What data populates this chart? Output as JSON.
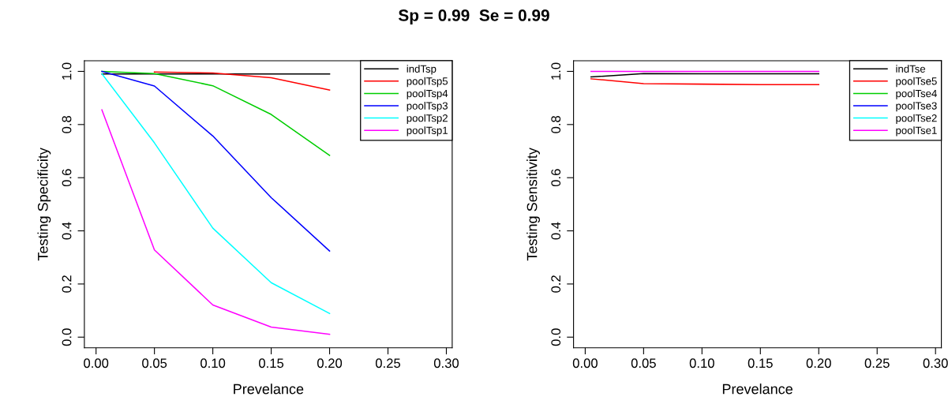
{
  "chart_data": [
    {
      "type": "line",
      "title": "Sp = 0.99  Se = 0.99",
      "xlabel": "Prevelance",
      "ylabel": "Testing Specificity",
      "x": [
        0.005,
        0.05,
        0.1,
        0.15,
        0.2
      ],
      "series": [
        {
          "name": "indTsp",
          "color": "#000000",
          "values": [
            0.99,
            0.99,
            0.99,
            0.99,
            0.99
          ]
        },
        {
          "name": "poolTsp5",
          "color": "#ff0000",
          "values": [
            null,
            0.998,
            0.994,
            0.976,
            0.93
          ]
        },
        {
          "name": "poolTsp4",
          "color": "#00cd00",
          "values": [
            1.0,
            0.992,
            0.946,
            0.838,
            0.684
          ]
        },
        {
          "name": "poolTsp3",
          "color": "#0000ff",
          "values": [
            1.0,
            0.945,
            0.757,
            0.525,
            0.324
          ]
        },
        {
          "name": "poolTsp2",
          "color": "#00ffff",
          "values": [
            0.991,
            0.731,
            0.41,
            0.205,
            0.089
          ]
        },
        {
          "name": "poolTsp1",
          "color": "#ff00ff",
          "values": [
            0.855,
            0.328,
            0.121,
            0.038,
            0.011
          ]
        }
      ],
      "xlim": [
        -0.01,
        0.305
      ],
      "ylim": [
        -0.04,
        1.04
      ],
      "xticks": [
        {
          "value": 0,
          "label": "0.00"
        },
        {
          "value": 0.05,
          "label": "0.05"
        },
        {
          "value": 0.1,
          "label": "0.10"
        },
        {
          "value": 0.15,
          "label": "0.15"
        },
        {
          "value": 0.2,
          "label": "0.20"
        },
        {
          "value": 0.25,
          "label": "0.25"
        },
        {
          "value": 0.3,
          "label": "0.30"
        }
      ],
      "yticks": [
        {
          "value": 0,
          "label": "0.0"
        },
        {
          "value": 0.2,
          "label": "0.2"
        },
        {
          "value": 0.4,
          "label": "0.4"
        },
        {
          "value": 0.6,
          "label": "0.6"
        },
        {
          "value": 0.8,
          "label": "0.8"
        },
        {
          "value": 1,
          "label": "1.0"
        }
      ],
      "grid": false,
      "legend": "top right",
      "line_style": "solid",
      "marker": "none"
    },
    {
      "type": "line",
      "xlabel": "Prevelance",
      "ylabel": "Testing Sensitivity",
      "x": [
        0.005,
        0.05,
        0.1,
        0.15,
        0.2
      ],
      "series": [
        {
          "name": "indTse",
          "color": "#000000",
          "values": [
            0.979,
            0.992,
            0.991,
            0.991,
            0.991
          ]
        },
        {
          "name": "poolTse5",
          "color": "#ff0000",
          "values": [
            0.972,
            0.954,
            0.952,
            0.95,
            0.95
          ]
        },
        {
          "name": "poolTse4",
          "color": "#00cd00",
          "values": [
            null,
            null,
            null,
            null,
            null
          ]
        },
        {
          "name": "poolTse3",
          "color": "#0000ff",
          "values": [
            null,
            null,
            null,
            null,
            null
          ]
        },
        {
          "name": "poolTse2",
          "color": "#00ffff",
          "values": [
            null,
            null,
            null,
            null,
            null
          ]
        },
        {
          "name": "poolTse1",
          "color": "#ff00ff",
          "values": [
            1.0,
            1.0,
            1.0,
            1.0,
            1.0
          ]
        }
      ],
      "xlim": [
        -0.01,
        0.305
      ],
      "ylim": [
        -0.04,
        1.04
      ],
      "xticks": [
        {
          "value": 0,
          "label": "0.00"
        },
        {
          "value": 0.05,
          "label": "0.05"
        },
        {
          "value": 0.1,
          "label": "0.10"
        },
        {
          "value": 0.15,
          "label": "0.15"
        },
        {
          "value": 0.2,
          "label": "0.20"
        },
        {
          "value": 0.25,
          "label": "0.25"
        },
        {
          "value": 0.3,
          "label": "0.30"
        }
      ],
      "yticks": [
        {
          "value": 0,
          "label": "0.0"
        },
        {
          "value": 0.2,
          "label": "0.2"
        },
        {
          "value": 0.4,
          "label": "0.4"
        },
        {
          "value": 0.6,
          "label": "0.6"
        },
        {
          "value": 0.8,
          "label": "0.8"
        },
        {
          "value": 1,
          "label": "1.0"
        }
      ],
      "grid": false,
      "legend": "top right",
      "line_style": "solid",
      "marker": "none"
    }
  ]
}
